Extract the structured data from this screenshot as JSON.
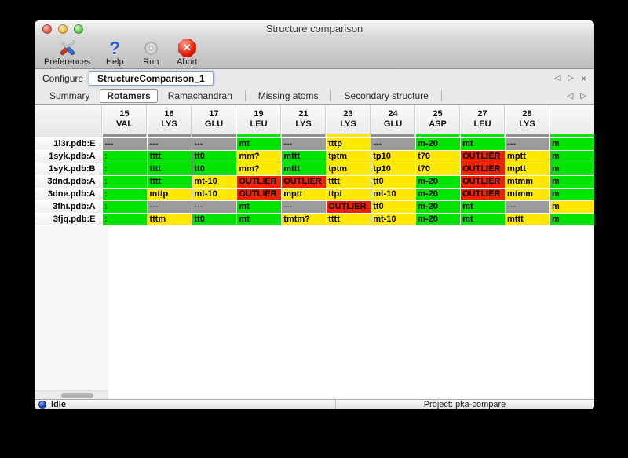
{
  "window": {
    "title": "Structure comparison"
  },
  "toolbar": {
    "buttons": [
      {
        "label": "Preferences",
        "icon": "tools-icon"
      },
      {
        "label": "Help",
        "icon": "help-icon",
        "glyph": "?"
      },
      {
        "label": "Run",
        "icon": "gear-icon"
      },
      {
        "label": "Abort",
        "icon": "abort-icon",
        "glyph": "✕"
      }
    ]
  },
  "configure": {
    "label": "Configure",
    "value": "StructureComparison_1",
    "nav": [
      "◁",
      "▷",
      "×"
    ]
  },
  "tabs": {
    "items": [
      "Summary",
      "Rotamers",
      "Ramachandran",
      "Missing atoms",
      "Secondary structure"
    ],
    "selected": 1,
    "nav": [
      "◁",
      "▷"
    ]
  },
  "table": {
    "columns": [
      {
        "num": "15",
        "res": "VAL",
        "strip": "gray"
      },
      {
        "num": "16",
        "res": "LYS",
        "strip": "gray"
      },
      {
        "num": "17",
        "res": "GLU",
        "strip": "gray"
      },
      {
        "num": "19",
        "res": "LEU",
        "strip": "green"
      },
      {
        "num": "21",
        "res": "LYS",
        "strip": "gray"
      },
      {
        "num": "23",
        "res": "LYS",
        "strip": "yellow"
      },
      {
        "num": "24",
        "res": "GLU",
        "strip": "gray"
      },
      {
        "num": "25",
        "res": "ASP",
        "strip": "green"
      },
      {
        "num": "27",
        "res": "LEU",
        "strip": "green"
      },
      {
        "num": "28",
        "res": "LYS",
        "strip": "gray"
      }
    ],
    "overflow_column_strip": "green",
    "rows": [
      {
        "label": "1l3r.pdb:E",
        "cells": [
          {
            "t": "---",
            "c": "gray"
          },
          {
            "t": "---",
            "c": "gray"
          },
          {
            "t": "---",
            "c": "gray"
          },
          {
            "t": "mt",
            "c": "green"
          },
          {
            "t": "---",
            "c": "gray"
          },
          {
            "t": "tttp",
            "c": "yellow"
          },
          {
            "t": "---",
            "c": "gray"
          },
          {
            "t": "m-20",
            "c": "green"
          },
          {
            "t": "mt",
            "c": "green"
          },
          {
            "t": "---",
            "c": "gray"
          }
        ],
        "edge": {
          "t": "m",
          "c": "green"
        }
      },
      {
        "label": "1syk.pdb:A",
        "cells": [
          {
            "t": ":",
            "c": "green"
          },
          {
            "t": "tttt",
            "c": "green"
          },
          {
            "t": "tt0",
            "c": "green"
          },
          {
            "t": "mm?",
            "c": "yellow"
          },
          {
            "t": "mttt",
            "c": "green"
          },
          {
            "t": "tptm",
            "c": "yellow"
          },
          {
            "t": "tp10",
            "c": "yellow"
          },
          {
            "t": "t70",
            "c": "yellow"
          },
          {
            "t": "OUTLIER",
            "c": "red"
          },
          {
            "t": "mptt",
            "c": "yellow"
          }
        ],
        "edge": {
          "t": "m",
          "c": "green"
        }
      },
      {
        "label": "1syk.pdb:B",
        "cells": [
          {
            "t": ":",
            "c": "green"
          },
          {
            "t": "tttt",
            "c": "green"
          },
          {
            "t": "tt0",
            "c": "green"
          },
          {
            "t": "mm?",
            "c": "yellow"
          },
          {
            "t": "mttt",
            "c": "green"
          },
          {
            "t": "tptm",
            "c": "yellow"
          },
          {
            "t": "tp10",
            "c": "yellow"
          },
          {
            "t": "t70",
            "c": "yellow"
          },
          {
            "t": "OUTLIER",
            "c": "red"
          },
          {
            "t": "mptt",
            "c": "yellow"
          }
        ],
        "edge": {
          "t": "m",
          "c": "green"
        }
      },
      {
        "label": "3dnd.pdb:A",
        "cells": [
          {
            "t": ":",
            "c": "green"
          },
          {
            "t": "tttt",
            "c": "green"
          },
          {
            "t": "mt-10",
            "c": "yellow"
          },
          {
            "t": "OUTLIER",
            "c": "red"
          },
          {
            "t": "OUTLIER",
            "c": "red"
          },
          {
            "t": "tttt",
            "c": "yellow"
          },
          {
            "t": "tt0",
            "c": "yellow"
          },
          {
            "t": "m-20",
            "c": "green"
          },
          {
            "t": "OUTLIER",
            "c": "red"
          },
          {
            "t": "mtmm",
            "c": "yellow"
          }
        ],
        "edge": {
          "t": "m",
          "c": "green"
        }
      },
      {
        "label": "3dne.pdb:A",
        "cells": [
          {
            "t": ":",
            "c": "green"
          },
          {
            "t": "mttp",
            "c": "yellow"
          },
          {
            "t": "mt-10",
            "c": "yellow"
          },
          {
            "t": "OUTLIER",
            "c": "red"
          },
          {
            "t": "mptt",
            "c": "yellow"
          },
          {
            "t": "ttpt",
            "c": "yellow"
          },
          {
            "t": "mt-10",
            "c": "yellow"
          },
          {
            "t": "m-20",
            "c": "green"
          },
          {
            "t": "OUTLIER",
            "c": "red"
          },
          {
            "t": "mtmm",
            "c": "yellow"
          }
        ],
        "edge": {
          "t": "m",
          "c": "green"
        }
      },
      {
        "label": "3fhi.pdb:A",
        "cells": [
          {
            "t": ":",
            "c": "green"
          },
          {
            "t": "---",
            "c": "gray"
          },
          {
            "t": "---",
            "c": "gray"
          },
          {
            "t": "mt",
            "c": "green"
          },
          {
            "t": "---",
            "c": "gray"
          },
          {
            "t": "OUTLIER",
            "c": "red"
          },
          {
            "t": "tt0",
            "c": "yellow"
          },
          {
            "t": "m-20",
            "c": "green"
          },
          {
            "t": "mt",
            "c": "green"
          },
          {
            "t": "---",
            "c": "gray"
          }
        ],
        "edge": {
          "t": "m",
          "c": "yellow"
        }
      },
      {
        "label": "3fjq.pdb:E",
        "cells": [
          {
            "t": ":",
            "c": "green"
          },
          {
            "t": "tttm",
            "c": "yellow"
          },
          {
            "t": "tt0",
            "c": "green"
          },
          {
            "t": "mt",
            "c": "green"
          },
          {
            "t": "tmtm?",
            "c": "yellow"
          },
          {
            "t": "tttt",
            "c": "yellow"
          },
          {
            "t": "mt-10",
            "c": "yellow"
          },
          {
            "t": "m-20",
            "c": "green"
          },
          {
            "t": "mt",
            "c": "green"
          },
          {
            "t": "mttt",
            "c": "yellow"
          }
        ],
        "edge": {
          "t": "m",
          "c": "green"
        }
      }
    ]
  },
  "statusbar": {
    "status": "Idle",
    "project": "Project: pka-compare"
  },
  "colors": {
    "green": "#00e400",
    "yellow": "#ffe800",
    "red": "#ee2100",
    "gray": "#9c9c9c",
    "strip_gray": "#8f8f8f",
    "status_dot_blue": "#1c3ecf"
  }
}
